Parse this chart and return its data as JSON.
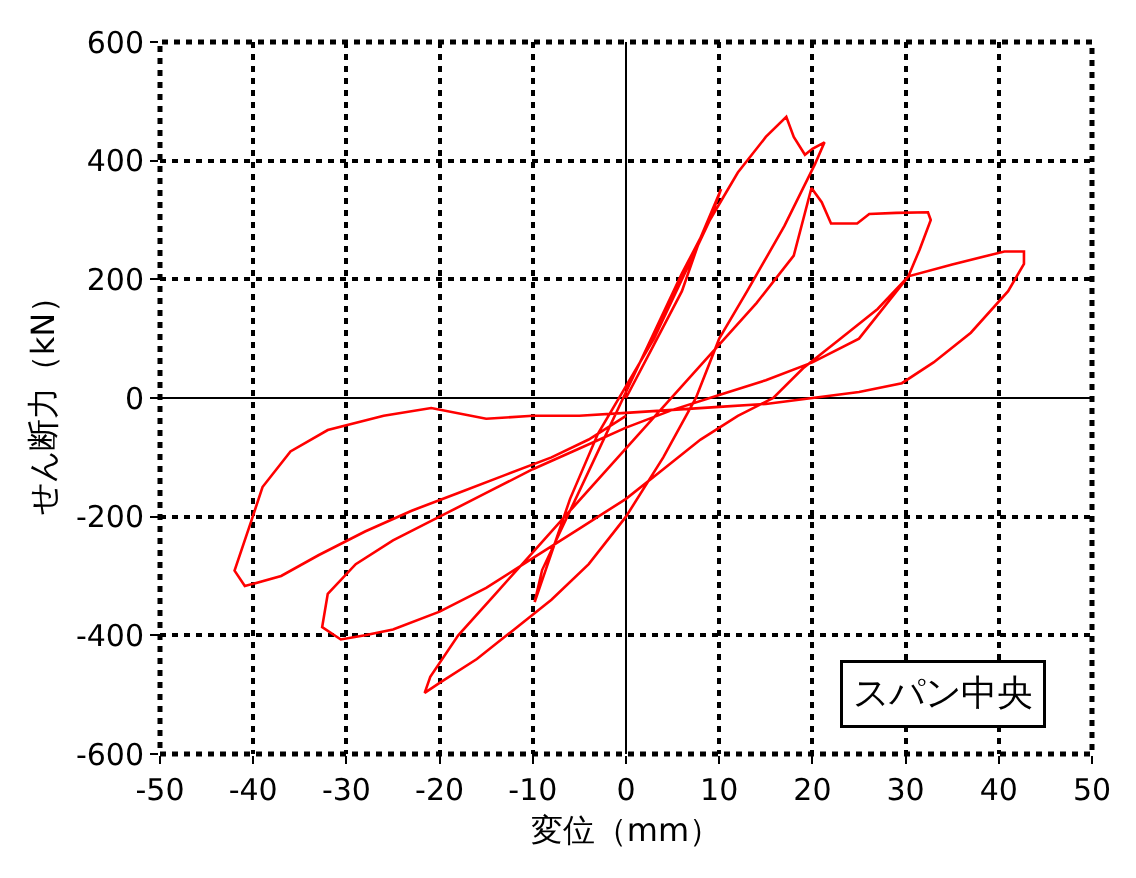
{
  "chart_data": {
    "type": "line",
    "xlabel": "変位（mm）",
    "ylabel": "せん断力（kN）",
    "xlim": [
      -50,
      50
    ],
    "xticks": [
      -50,
      -40,
      -30,
      -20,
      -10,
      0,
      10,
      20,
      30,
      40,
      50
    ],
    "ylim": [
      -600,
      600
    ],
    "yticks": [
      -600,
      -400,
      -200,
      0,
      200,
      400,
      600
    ],
    "grid": true,
    "line_style": "solid",
    "marker": "none",
    "annotations": [
      "スパン中央"
    ],
    "series": [
      {
        "color": "#ff0000",
        "x": [
          0,
          3,
          6,
          8,
          10.2,
          9,
          6,
          3,
          0,
          -3,
          -6,
          -9.8,
          -9,
          -6,
          -3,
          0,
          3,
          6,
          9,
          12,
          15,
          17.2,
          18,
          19.2,
          20,
          21.3,
          20.3,
          17,
          13,
          10,
          7.5,
          4,
          0,
          -4,
          -8,
          -12,
          -16,
          -20,
          -21.6,
          -21,
          -18,
          -14,
          -10,
          -6,
          -2,
          2,
          6,
          10,
          14,
          18,
          19.9,
          21,
          22,
          24.8,
          26.1,
          29,
          32.4,
          32.7,
          31.5,
          30.3,
          27,
          23,
          19,
          15.8,
          12,
          8,
          4,
          0,
          -5,
          -10,
          -15,
          -20,
          -25,
          -28,
          -30.6,
          -32.6,
          -32,
          -29,
          -25,
          -20,
          -15,
          -10,
          -5,
          0,
          5,
          10,
          15,
          20,
          25,
          30.3,
          35,
          40.6,
          42.7,
          42.7,
          41,
          37,
          33,
          29.6,
          25,
          20,
          15,
          10,
          5,
          0,
          -5,
          -10,
          -15,
          -20.9,
          -26,
          -32,
          -36,
          -39,
          -40.2,
          -42,
          -40.9,
          -37,
          -33,
          -28,
          -23,
          -18,
          -13,
          -8,
          -4,
          0
        ],
        "values": [
          0,
          90,
          180,
          270,
          352,
          300,
          200,
          100,
          20,
          -60,
          -170,
          -344,
          -290,
          -190,
          -90,
          10,
          110,
          210,
          300,
          380,
          440,
          474,
          440,
          410,
          420,
          431,
          395,
          290,
          180,
          100,
          0,
          -100,
          -200,
          -280,
          -340,
          -390,
          -440,
          -480,
          -497,
          -470,
          -400,
          -330,
          -260,
          -190,
          -120,
          -50,
          20,
          90,
          160,
          240,
          354,
          330,
          294,
          294,
          310,
          312,
          313,
          300,
          250,
          205,
          150,
          100,
          50,
          0,
          -30,
          -70,
          -120,
          -170,
          -220,
          -270,
          -320,
          -360,
          -390,
          -400,
          -407,
          -386,
          -330,
          -280,
          -240,
          -200,
          -160,
          -120,
          -85,
          -50,
          -20,
          5,
          30,
          60,
          100,
          205,
          225,
          247,
          247,
          226,
          180,
          110,
          60,
          25,
          10,
          0,
          -10,
          -15,
          -20,
          -25,
          -30,
          -30,
          -35,
          -17,
          -30,
          -54,
          -90,
          -150,
          -207,
          -291,
          -317,
          -300,
          -265,
          -225,
          -190,
          -160,
          -130,
          -100,
          -70,
          -30
        ]
      }
    ]
  }
}
